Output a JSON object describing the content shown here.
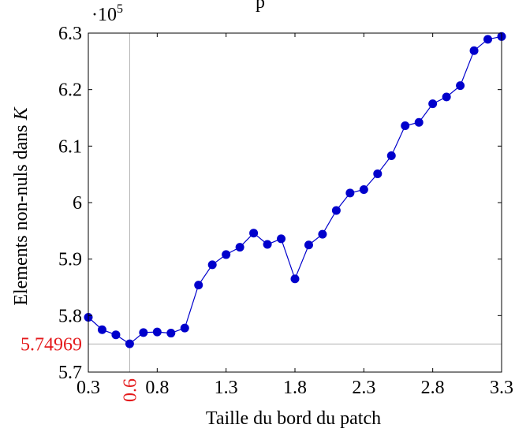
{
  "chart_data": {
    "type": "line",
    "title": "",
    "title_partial_visible": "p",
    "xlabel": "Taille du bord du patch",
    "ylabel": "Elements non-nuls dans",
    "ylabel_var": "K",
    "y_scale_label": "·10",
    "y_scale_exponent": "5",
    "xlim": [
      0.3,
      3.3
    ],
    "ylim": [
      5.7,
      6.3
    ],
    "x_ticks": [
      {
        "value": 0.3,
        "label": "0.3"
      },
      {
        "value": 0.8,
        "label": "0.8"
      },
      {
        "value": 1.3,
        "label": "1.3"
      },
      {
        "value": 1.8,
        "label": "1.8"
      },
      {
        "value": 2.3,
        "label": "2.3"
      },
      {
        "value": 2.8,
        "label": "2.8"
      },
      {
        "value": 3.3,
        "label": "3.3"
      }
    ],
    "y_ticks": [
      {
        "value": 5.7,
        "label": "5.7"
      },
      {
        "value": 5.8,
        "label": "5.8"
      },
      {
        "value": 5.9,
        "label": "5.9"
      },
      {
        "value": 6.0,
        "label": "6"
      },
      {
        "value": 6.1,
        "label": "6.1"
      },
      {
        "value": 6.2,
        "label": "6.2"
      },
      {
        "value": 6.3,
        "label": "6.3"
      }
    ],
    "highlight": {
      "x": 0.6,
      "x_label": "0.6",
      "y": 5.74969,
      "y_label": "5.74969",
      "color": "#e41a1c"
    },
    "series": [
      {
        "color": "#0000cc",
        "x": [
          0.3,
          0.4,
          0.5,
          0.6,
          0.7,
          0.8,
          0.9,
          1.0,
          1.1,
          1.2,
          1.3,
          1.4,
          1.5,
          1.6,
          1.7,
          1.8,
          1.9,
          2.0,
          2.1,
          2.2,
          2.3,
          2.4,
          2.5,
          2.6,
          2.7,
          2.8,
          2.9,
          3.0,
          3.1,
          3.2,
          3.3
        ],
        "y": [
          5.797,
          5.775,
          5.766,
          5.75,
          5.77,
          5.771,
          5.769,
          5.778,
          5.854,
          5.89,
          5.908,
          5.921,
          5.946,
          5.926,
          5.936,
          5.865,
          5.925,
          5.944,
          5.986,
          6.017,
          6.023,
          6.051,
          6.083,
          6.136,
          6.142,
          6.175,
          6.187,
          6.207,
          6.269,
          6.289,
          6.294
        ]
      }
    ],
    "grid": false
  }
}
